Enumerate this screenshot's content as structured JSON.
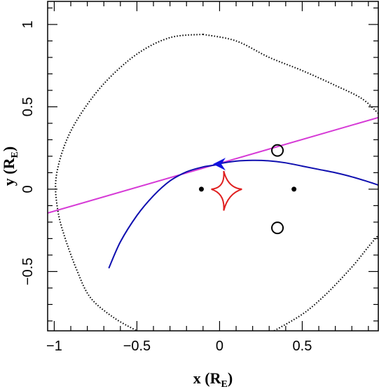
{
  "chart_data": {
    "type": "line",
    "xlabel": "x",
    "xlabel_unit": "R",
    "xlabel_unit_sub": "E",
    "ylabel": "y",
    "ylabel_unit": "R",
    "ylabel_unit_sub": "E",
    "xlim": [
      -1.04,
      0.96
    ],
    "ylim": [
      -0.86,
      1.14
    ],
    "xticks": [
      -1,
      -0.5,
      0,
      0.5
    ],
    "xtick_labels": [
      "−1",
      "−0.5",
      "0",
      "0.5"
    ],
    "yticks": [
      -0.5,
      0,
      0.5,
      1
    ],
    "ytick_labels": [
      "−0.5",
      "0",
      "0.5",
      "1"
    ],
    "grid": false,
    "colors": {
      "caustic": "#e02020",
      "straight_trajectory": "#d63ad6",
      "curved_trajectory": "#1010b0",
      "arrow": "#1010e0",
      "dotted_curve": "#000000",
      "lens_points": "#000000",
      "circles": "#000000"
    },
    "series": [
      {
        "kind": "dotted-contour",
        "points": [
          [
            -0.1,
            0.94
          ],
          [
            -0.3,
            0.92
          ],
          [
            -0.5,
            0.82
          ],
          [
            -0.7,
            0.64
          ],
          [
            -0.85,
            0.44
          ],
          [
            -0.94,
            0.26
          ],
          [
            -0.99,
            0.06
          ],
          [
            -0.98,
            -0.12
          ],
          [
            -0.94,
            -0.28
          ],
          [
            -0.86,
            -0.5
          ],
          [
            -0.78,
            -0.66
          ],
          [
            -0.64,
            -0.78
          ],
          [
            -0.5,
            -0.86
          ]
        ]
      },
      {
        "kind": "dotted-contour",
        "points": [
          [
            -0.1,
            0.94
          ],
          [
            0.1,
            0.9
          ],
          [
            0.3,
            0.8
          ],
          [
            0.5,
            0.72
          ],
          [
            0.7,
            0.63
          ],
          [
            0.86,
            0.55
          ],
          [
            0.96,
            0.46
          ]
        ]
      },
      {
        "kind": "dotted-contour",
        "points": [
          [
            0.33,
            -0.86
          ],
          [
            0.5,
            -0.76
          ],
          [
            0.62,
            -0.66
          ],
          [
            0.72,
            -0.56
          ],
          [
            0.82,
            -0.45
          ],
          [
            0.9,
            -0.35
          ],
          [
            0.96,
            -0.28
          ]
        ]
      },
      {
        "kind": "straight-trajectory",
        "points": [
          [
            -1.04,
            -0.145
          ],
          [
            0.96,
            0.435
          ]
        ]
      },
      {
        "kind": "curved-trajectory",
        "points": [
          [
            -0.67,
            -0.48
          ],
          [
            -0.6,
            -0.32
          ],
          [
            -0.5,
            -0.16
          ],
          [
            -0.4,
            -0.04
          ],
          [
            -0.3,
            0.05
          ],
          [
            -0.2,
            0.105
          ],
          [
            -0.1,
            0.135
          ],
          [
            -0.02,
            0.148
          ],
          [
            0.0,
            0.155
          ],
          [
            0.1,
            0.17
          ],
          [
            0.2,
            0.175
          ],
          [
            0.3,
            0.172
          ],
          [
            0.4,
            0.16
          ],
          [
            0.5,
            0.14
          ],
          [
            0.6,
            0.12
          ],
          [
            0.7,
            0.1
          ],
          [
            0.8,
            0.075
          ],
          [
            0.9,
            0.045
          ],
          [
            0.96,
            0.025
          ]
        ]
      },
      {
        "kind": "caustic",
        "cusps": [
          [
            -0.05,
            0.0
          ],
          [
            0.135,
            0.0
          ],
          [
            0.025,
            0.11
          ],
          [
            0.025,
            -0.13
          ]
        ]
      }
    ],
    "arrow": {
      "tip": [
        -0.04,
        0.152
      ],
      "direction": "left"
    },
    "lens_points": [
      [
        -0.11,
        0.0
      ],
      [
        0.45,
        0.0
      ]
    ],
    "circles": [
      [
        0.35,
        0.235
      ],
      [
        0.35,
        -0.235
      ]
    ]
  }
}
